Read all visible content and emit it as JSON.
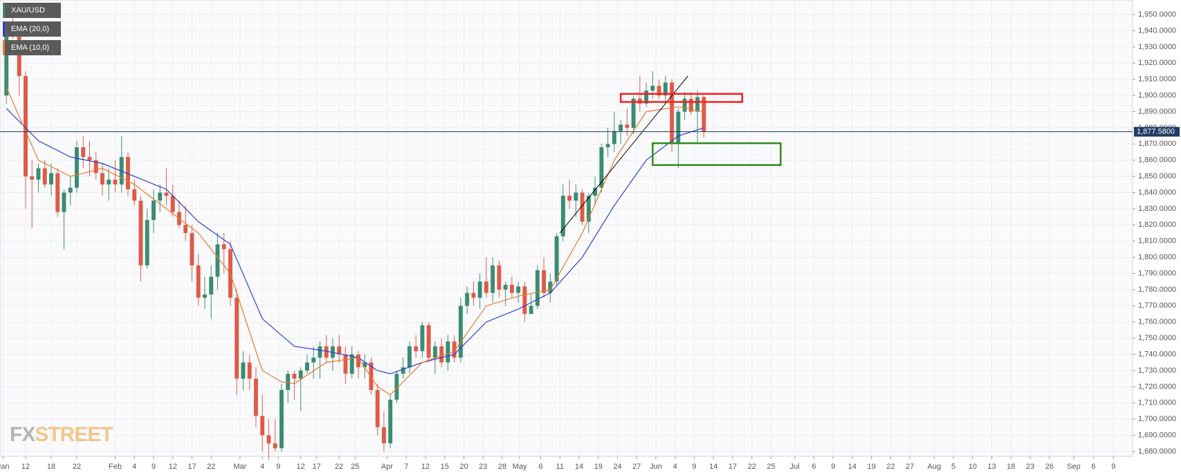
{
  "chart_data": {
    "type": "candlestick",
    "series": [
      {
        "name": "XAU/USD",
        "type": "candlestick",
        "up_color": "#3b8c72",
        "down_color": "#de5b48",
        "ohlc": [
          [
            1900,
            1945,
            1895,
            1942
          ],
          [
            1942,
            1950,
            1935,
            1940
          ],
          [
            1940,
            1942,
            1900,
            1912
          ],
          [
            1912,
            1915,
            1830,
            1850
          ],
          [
            1850,
            1860,
            1818,
            1848
          ],
          [
            1848,
            1858,
            1840,
            1855
          ],
          [
            1855,
            1860,
            1843,
            1845
          ],
          [
            1845,
            1858,
            1838,
            1852
          ],
          [
            1852,
            1855,
            1825,
            1828
          ],
          [
            1828,
            1842,
            1805,
            1840
          ],
          [
            1840,
            1850,
            1832,
            1843
          ],
          [
            1843,
            1872,
            1840,
            1868
          ],
          [
            1868,
            1875,
            1855,
            1862
          ],
          [
            1862,
            1872,
            1850,
            1860
          ],
          [
            1860,
            1865,
            1848,
            1852
          ],
          [
            1852,
            1858,
            1838,
            1845
          ],
          [
            1845,
            1855,
            1835,
            1848
          ],
          [
            1848,
            1860,
            1840,
            1845
          ],
          [
            1845,
            1875,
            1840,
            1862
          ],
          [
            1862,
            1865,
            1838,
            1842
          ],
          [
            1842,
            1848,
            1832,
            1835
          ],
          [
            1835,
            1838,
            1785,
            1795
          ],
          [
            1795,
            1830,
            1793,
            1823
          ],
          [
            1823,
            1842,
            1815,
            1835
          ],
          [
            1835,
            1845,
            1828,
            1840
          ],
          [
            1840,
            1855,
            1832,
            1838
          ],
          [
            1838,
            1845,
            1825,
            1828
          ],
          [
            1828,
            1835,
            1818,
            1820
          ],
          [
            1820,
            1832,
            1810,
            1815
          ],
          [
            1815,
            1820,
            1785,
            1795
          ],
          [
            1795,
            1802,
            1770,
            1775
          ],
          [
            1775,
            1788,
            1768,
            1777
          ],
          [
            1777,
            1795,
            1762,
            1788
          ],
          [
            1788,
            1815,
            1780,
            1808
          ],
          [
            1808,
            1815,
            1790,
            1805
          ],
          [
            1805,
            1810,
            1770,
            1775
          ],
          [
            1775,
            1780,
            1715,
            1725
          ],
          [
            1725,
            1742,
            1718,
            1735
          ],
          [
            1735,
            1740,
            1718,
            1725
          ],
          [
            1725,
            1732,
            1695,
            1702
          ],
          [
            1702,
            1715,
            1680,
            1690
          ],
          [
            1690,
            1700,
            1675,
            1685
          ],
          [
            1685,
            1700,
            1680,
            1682
          ],
          [
            1682,
            1722,
            1680,
            1718
          ],
          [
            1718,
            1730,
            1710,
            1728
          ],
          [
            1728,
            1730,
            1712,
            1725
          ],
          [
            1725,
            1732,
            1705,
            1730
          ],
          [
            1730,
            1740,
            1728,
            1735
          ],
          [
            1735,
            1745,
            1725,
            1738
          ],
          [
            1738,
            1748,
            1725,
            1745
          ],
          [
            1745,
            1752,
            1735,
            1738
          ],
          [
            1738,
            1750,
            1730,
            1745
          ],
          [
            1745,
            1752,
            1735,
            1740
          ],
          [
            1740,
            1745,
            1722,
            1728
          ],
          [
            1728,
            1745,
            1725,
            1740
          ],
          [
            1740,
            1742,
            1725,
            1732
          ],
          [
            1732,
            1740,
            1725,
            1735
          ],
          [
            1735,
            1738,
            1715,
            1718
          ],
          [
            1718,
            1722,
            1690,
            1695
          ],
          [
            1695,
            1705,
            1680,
            1685
          ],
          [
            1685,
            1715,
            1682,
            1712
          ],
          [
            1712,
            1730,
            1710,
            1728
          ],
          [
            1728,
            1738,
            1725,
            1732
          ],
          [
            1732,
            1748,
            1728,
            1745
          ],
          [
            1745,
            1752,
            1738,
            1742
          ],
          [
            1742,
            1760,
            1738,
            1758
          ],
          [
            1758,
            1760,
            1735,
            1738
          ],
          [
            1738,
            1748,
            1728,
            1745
          ],
          [
            1745,
            1750,
            1732,
            1735
          ],
          [
            1735,
            1752,
            1730,
            1748
          ],
          [
            1748,
            1752,
            1735,
            1738
          ],
          [
            1738,
            1775,
            1735,
            1770
          ],
          [
            1770,
            1782,
            1765,
            1778
          ],
          [
            1778,
            1785,
            1770,
            1775
          ],
          [
            1775,
            1790,
            1768,
            1785
          ],
          [
            1785,
            1800,
            1775,
            1778
          ],
          [
            1778,
            1800,
            1772,
            1795
          ],
          [
            1795,
            1798,
            1775,
            1780
          ],
          [
            1780,
            1785,
            1770,
            1783
          ],
          [
            1783,
            1788,
            1775,
            1778
          ],
          [
            1778,
            1785,
            1772,
            1782
          ],
          [
            1782,
            1785,
            1760,
            1765
          ],
          [
            1765,
            1778,
            1765,
            1770
          ],
          [
            1770,
            1795,
            1768,
            1792
          ],
          [
            1792,
            1800,
            1775,
            1778
          ],
          [
            1778,
            1790,
            1772,
            1785
          ],
          [
            1785,
            1815,
            1783,
            1813
          ],
          [
            1813,
            1845,
            1810,
            1838
          ],
          [
            1838,
            1848,
            1830,
            1835
          ],
          [
            1835,
            1845,
            1825,
            1840
          ],
          [
            1840,
            1842,
            1820,
            1822
          ],
          [
            1822,
            1840,
            1815,
            1838
          ],
          [
            1838,
            1850,
            1832,
            1843
          ],
          [
            1843,
            1870,
            1840,
            1868
          ],
          [
            1868,
            1880,
            1862,
            1870
          ],
          [
            1870,
            1890,
            1865,
            1878
          ],
          [
            1878,
            1885,
            1870,
            1882
          ],
          [
            1882,
            1892,
            1875,
            1880
          ],
          [
            1880,
            1900,
            1876,
            1898
          ],
          [
            1898,
            1912,
            1890,
            1895
          ],
          [
            1895,
            1908,
            1893,
            1903
          ],
          [
            1903,
            1915,
            1898,
            1906
          ],
          [
            1906,
            1910,
            1898,
            1900
          ],
          [
            1900,
            1912,
            1895,
            1908
          ],
          [
            1908,
            1910,
            1865,
            1870
          ],
          [
            1870,
            1892,
            1855,
            1890
          ],
          [
            1890,
            1902,
            1885,
            1898
          ],
          [
            1898,
            1902,
            1888,
            1890
          ],
          [
            1890,
            1903,
            1870,
            1899
          ],
          [
            1899,
            1900,
            1874,
            1877.58
          ]
        ]
      },
      {
        "name": "EMA (20,0)",
        "type": "line",
        "color": "#2d3fd8",
        "x": [
          0,
          5,
          10,
          15,
          20,
          25,
          30,
          35,
          40,
          45,
          50,
          55,
          58,
          60,
          65,
          70,
          75,
          80,
          85,
          90,
          95,
          100,
          105,
          109
        ],
        "values": [
          1892,
          1872,
          1862,
          1858,
          1850,
          1842,
          1822,
          1808,
          1762,
          1745,
          1742,
          1738,
          1730,
          1728,
          1735,
          1740,
          1760,
          1768,
          1778,
          1800,
          1832,
          1860,
          1875,
          1880
        ]
      },
      {
        "name": "EMA (10,0)",
        "type": "line",
        "color": "#e8792a",
        "x": [
          0,
          5,
          10,
          15,
          20,
          25,
          30,
          35,
          40,
          43,
          45,
          50,
          55,
          58,
          60,
          65,
          70,
          75,
          80,
          85,
          90,
          95,
          100,
          105,
          109
        ],
        "values": [
          1905,
          1860,
          1850,
          1855,
          1845,
          1830,
          1815,
          1790,
          1730,
          1723,
          1722,
          1735,
          1738,
          1720,
          1715,
          1735,
          1742,
          1770,
          1776,
          1780,
          1815,
          1860,
          1890,
          1893,
          1890
        ]
      }
    ],
    "xlim": [
      -1,
      176
    ],
    "xticks": [
      {
        "value": -0.5,
        "label": "Jan"
      },
      {
        "value": 3,
        "label": "12"
      },
      {
        "value": 7,
        "label": "18"
      },
      {
        "value": 11,
        "label": "22"
      },
      {
        "value": 17,
        "label": "Feb"
      },
      {
        "value": 20,
        "label": "4"
      },
      {
        "value": 23,
        "label": "9"
      },
      {
        "value": 26,
        "label": "12"
      },
      {
        "value": 29,
        "label": "17"
      },
      {
        "value": 32,
        "label": "22"
      },
      {
        "value": 36.5,
        "label": "Mar"
      },
      {
        "value": 40,
        "label": "4"
      },
      {
        "value": 42.5,
        "label": "9"
      },
      {
        "value": 46,
        "label": "12"
      },
      {
        "value": 48.5,
        "label": "17"
      },
      {
        "value": 52,
        "label": "22"
      },
      {
        "value": 54.5,
        "label": "25"
      },
      {
        "value": 59.5,
        "label": "Apr"
      },
      {
        "value": 62.5,
        "label": "7"
      },
      {
        "value": 65.5,
        "label": "12"
      },
      {
        "value": 68.5,
        "label": "15"
      },
      {
        "value": 71.5,
        "label": "20"
      },
      {
        "value": 74.5,
        "label": "23"
      },
      {
        "value": 77.5,
        "label": "28"
      },
      {
        "value": 80.2,
        "label": "May"
      },
      {
        "value": 83.5,
        "label": "6"
      },
      {
        "value": 86.5,
        "label": "11"
      },
      {
        "value": 89.5,
        "label": "14"
      },
      {
        "value": 92.5,
        "label": "19"
      },
      {
        "value": 95.5,
        "label": "24"
      },
      {
        "value": 98.5,
        "label": "27"
      },
      {
        "value": 101.5,
        "label": "Jun"
      },
      {
        "value": 104.5,
        "label": "4"
      },
      {
        "value": 107.5,
        "label": "9"
      },
      {
        "value": 110.5,
        "label": "14"
      },
      {
        "value": 113.5,
        "label": "17"
      },
      {
        "value": 116.5,
        "label": "22"
      },
      {
        "value": 119.5,
        "label": "25"
      },
      {
        "value": 123.2,
        "label": "Jul"
      },
      {
        "value": 126.2,
        "label": "6"
      },
      {
        "value": 129.2,
        "label": "9"
      },
      {
        "value": 132.2,
        "label": "14"
      },
      {
        "value": 135.2,
        "label": "19"
      },
      {
        "value": 138.2,
        "label": "22"
      },
      {
        "value": 141.2,
        "label": "27"
      },
      {
        "value": 145,
        "label": "Aug"
      },
      {
        "value": 148,
        "label": "5"
      },
      {
        "value": 151,
        "label": "10"
      },
      {
        "value": 154,
        "label": "13"
      },
      {
        "value": 157,
        "label": "18"
      },
      {
        "value": 160,
        "label": "23"
      },
      {
        "value": 163,
        "label": "26"
      },
      {
        "value": 166.8,
        "label": "Sep"
      },
      {
        "value": 169.9,
        "label": "6"
      },
      {
        "value": 173,
        "label": "9"
      }
    ],
    "ylim": [
      1677,
      1959
    ],
    "yticks": [
      {
        "value": 1680,
        "label": "1,680.0000"
      },
      {
        "value": 1690,
        "label": "1,690.0000"
      },
      {
        "value": 1700,
        "label": "1,700.0000"
      },
      {
        "value": 1710,
        "label": "1,710.0000"
      },
      {
        "value": 1720,
        "label": "1,720.0000"
      },
      {
        "value": 1730,
        "label": "1,730.0000"
      },
      {
        "value": 1740,
        "label": "1,740.0000"
      },
      {
        "value": 1750,
        "label": "1,750.0000"
      },
      {
        "value": 1760,
        "label": "1,760.0000"
      },
      {
        "value": 1770,
        "label": "1,770.0000"
      },
      {
        "value": 1780,
        "label": "1,780.0000"
      },
      {
        "value": 1790,
        "label": "1,790.0000"
      },
      {
        "value": 1800,
        "label": "1,800.0000"
      },
      {
        "value": 1810,
        "label": "1,810.0000"
      },
      {
        "value": 1820,
        "label": "1,820.0000"
      },
      {
        "value": 1830,
        "label": "1,830.0000"
      },
      {
        "value": 1840,
        "label": "1,840.0000"
      },
      {
        "value": 1850,
        "label": "1,850.0000"
      },
      {
        "value": 1860,
        "label": "1,860.0000"
      },
      {
        "value": 1870,
        "label": "1,870.0000"
      },
      {
        "value": 1880,
        "label": "1,880.0000"
      },
      {
        "value": 1890,
        "label": "1,890.0000"
      },
      {
        "value": 1900,
        "label": "1,900.0000"
      },
      {
        "value": 1910,
        "label": "1,910.0000"
      },
      {
        "value": 1920,
        "label": "1,920.0000"
      },
      {
        "value": 1930,
        "label": "1,930.0000"
      },
      {
        "value": 1940,
        "label": "1,940.0000"
      },
      {
        "value": 1950,
        "label": "1,950.0000"
      }
    ],
    "grid": true,
    "last_price": {
      "value": 1877.58,
      "label": "1,877.5800",
      "color": "#1f3b63"
    },
    "annotations": [
      {
        "type": "line",
        "x": [
          86.5,
          106.5
        ],
        "y": [
          1815,
          1912
        ],
        "color": "#000000"
      },
      {
        "type": "rect",
        "x": [
          96,
          115
        ],
        "y": [
          1896,
          1901
        ],
        "color": "#ff1a1a"
      },
      {
        "type": "rect",
        "x": [
          101,
          121
        ],
        "y": [
          1857,
          1870.5
        ],
        "color": "#2e8b17"
      }
    ],
    "watermark": [
      "FX",
      "STREET"
    ]
  }
}
